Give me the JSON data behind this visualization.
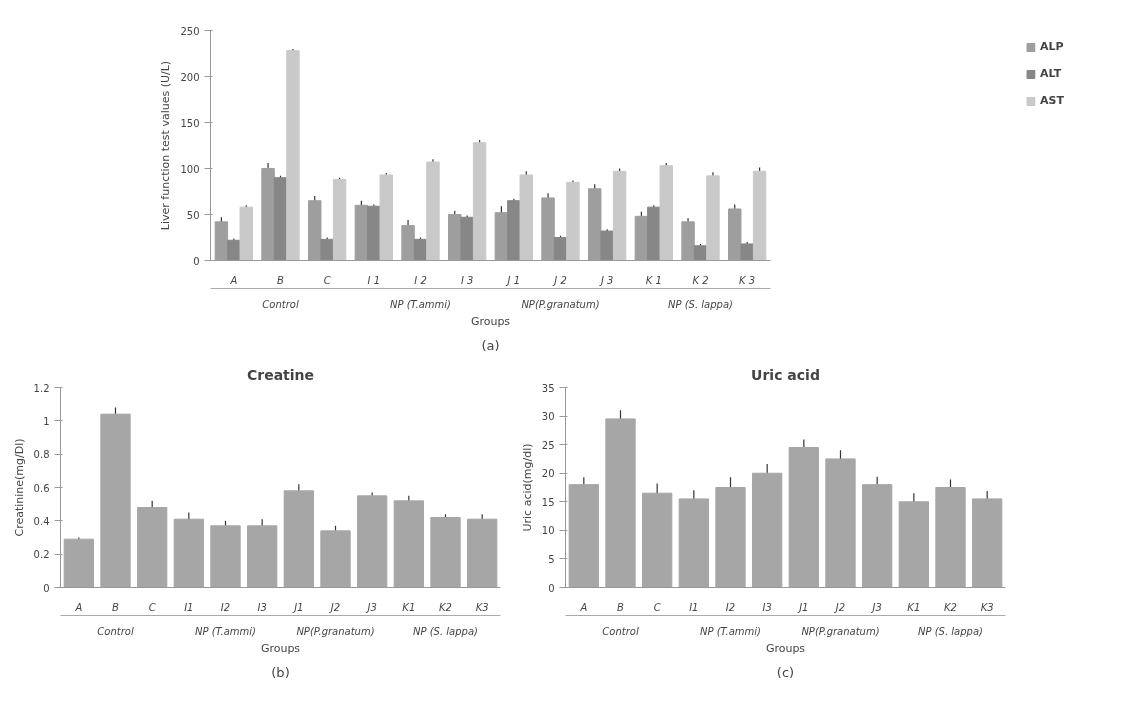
{
  "chart_data": [
    {
      "type": "bar",
      "subtitle": "(a)",
      "xlabel": "Groups",
      "ylabel": "Liver function test values (U/L)",
      "categories": [
        "A",
        "B",
        "C",
        "I 1",
        "I 2",
        "I 3",
        "J 1",
        "J 2",
        "J 3",
        "K 1",
        "K 2",
        "K 3"
      ],
      "annotations": [
        "Control",
        "NP (T.ammi)",
        "NP(P.granatum)",
        "NP (S. lappa)"
      ],
      "series": [
        {
          "name": "ALP",
          "color": "#9e9e9e",
          "values": [
            42,
            100,
            65,
            60,
            38,
            50,
            52,
            68,
            78,
            48,
            42,
            56
          ],
          "errors": [
            5,
            6,
            5,
            5,
            6,
            4,
            7,
            5,
            5,
            5,
            4,
            5
          ]
        },
        {
          "name": "ALT",
          "color": "#878787",
          "values": [
            22,
            90,
            23,
            59,
            23,
            47,
            65,
            25,
            32,
            58,
            16,
            18
          ],
          "errors": [
            2,
            2,
            2,
            2,
            2,
            2,
            2,
            2,
            2,
            2,
            2,
            2
          ]
        },
        {
          "name": "AST",
          "color": "#c9c9c9",
          "values": [
            58,
            228,
            88,
            93,
            107,
            128,
            93,
            85,
            97,
            103,
            92,
            97
          ],
          "errors": [
            2,
            2,
            2,
            2,
            3,
            3,
            4,
            2,
            3,
            3,
            4,
            4
          ]
        }
      ],
      "ylim": [
        0,
        250
      ],
      "yticks": [
        0,
        50,
        100,
        150,
        200,
        250
      ],
      "grid": false,
      "legend": "top right"
    },
    {
      "type": "bar",
      "title": "Creatine",
      "subtitle": "(b)",
      "xlabel": "Groups",
      "ylabel": "Creatinine(mg/Dl)",
      "categories": [
        "A",
        "B",
        "C",
        "I1",
        "I2",
        "I3",
        "J1",
        "J2",
        "J3",
        "K1",
        "K2",
        "K3"
      ],
      "annotations": [
        "Control",
        "NP (T.ammi)",
        "NP(P.granatum)",
        "NP (S. lappa)"
      ],
      "color": "#a6a6a6",
      "values": [
        0.29,
        1.04,
        0.48,
        0.41,
        0.37,
        0.37,
        0.58,
        0.34,
        0.55,
        0.52,
        0.42,
        0.41
      ],
      "errors": [
        0.01,
        0.04,
        0.04,
        0.04,
        0.03,
        0.04,
        0.04,
        0.03,
        0.02,
        0.03,
        0.02,
        0.03
      ],
      "ylim": [
        0,
        1.2
      ],
      "yticks": [
        0,
        0.2,
        0.4,
        0.6,
        0.8,
        1,
        1.2
      ],
      "grid": false
    },
    {
      "type": "bar",
      "title": "Uric acid",
      "subtitle": "(c)",
      "xlabel": "Groups",
      "ylabel": "Uric acid(mg/dl)",
      "categories": [
        "A",
        "B",
        "C",
        "I1",
        "I2",
        "I3",
        "J1",
        "J2",
        "J3",
        "K1",
        "K2",
        "K3"
      ],
      "annotations": [
        "Control",
        "NP (T.ammi)",
        "NP(P.granatum)",
        "NP (S. lappa)"
      ],
      "color": "#a6a6a6",
      "values": [
        18,
        29.5,
        16.5,
        15.5,
        17.5,
        20,
        24.5,
        22.5,
        18,
        15,
        17.5,
        15.5
      ],
      "errors": [
        1.3,
        1.5,
        1.7,
        1.5,
        1.8,
        1.6,
        1.4,
        1.5,
        1.4,
        1.5,
        1.4,
        1.4
      ],
      "ylim": [
        0,
        35
      ],
      "yticks": [
        0,
        5,
        10,
        15,
        20,
        25,
        30,
        35
      ],
      "grid": false
    }
  ]
}
